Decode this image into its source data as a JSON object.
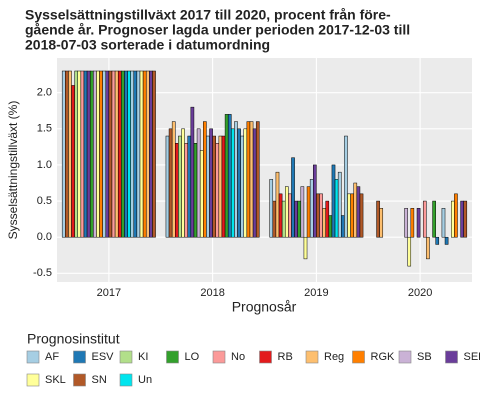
{
  "chart_data": {
    "type": "bar",
    "title": [
      "Sysselsättningstillväxt 2017 till 2020, procent från före-",
      "gående år. Prognoser lagda under perioden 2017-12-03 till",
      " 2018-07-03 sorterade i datumordning"
    ],
    "x_label": "Prognosår",
    "y_label": "Sysselsättningstillväxt (%)",
    "categories": [
      "2017",
      "2018",
      "2019",
      "2020"
    ],
    "ylim": [
      -0.62,
      2.48
    ],
    "yticks": [
      {
        "value": 2,
        "label": "2.0"
      },
      1.5,
      {
        "value": 1,
        "label": "1.0"
      },
      0.5,
      {
        "value": 0,
        "label": "0.0"
      },
      -0.5
    ],
    "grid": true,
    "legend_title": "Prognosinstitut",
    "institutes": [
      {
        "name": "AF",
        "color": "#a6cee3"
      },
      {
        "name": "ESV",
        "color": "#1f78b4"
      },
      {
        "name": "KI",
        "color": "#b2df8a"
      },
      {
        "name": "LO",
        "color": "#33a02c"
      },
      {
        "name": "No",
        "color": "#fb9a99"
      },
      {
        "name": "RB",
        "color": "#e31a1c"
      },
      {
        "name": "Reg",
        "color": "#fdbf6f"
      },
      {
        "name": "RGK",
        "color": "#ff7f00"
      },
      {
        "name": "SB",
        "color": "#cab2d6"
      },
      {
        "name": "SEB",
        "color": "#6a3d9a"
      },
      {
        "name": "SKL",
        "color": "#ffff99"
      },
      {
        "name": "SN",
        "color": "#b15928"
      },
      {
        "name": "Un",
        "color": "#00e5ee"
      }
    ],
    "forecasts": [
      {
        "institute": 0,
        "values": [
          2.3,
          1.4,
          0.8,
          null
        ]
      },
      {
        "institute": 11,
        "values": [
          2.3,
          1.5,
          0.5,
          0.5
        ]
      },
      {
        "institute": 6,
        "values": [
          2.3,
          1.6,
          0.9,
          0.4
        ]
      },
      {
        "institute": 5,
        "values": [
          2.1,
          1.3,
          0.6,
          0.0
        ]
      },
      {
        "institute": 2,
        "values": [
          2.3,
          1.4,
          0.5,
          null
        ]
      },
      {
        "institute": 10,
        "values": [
          2.3,
          1.5,
          0.7,
          null
        ]
      },
      {
        "institute": 4,
        "values": [
          2.3,
          1.3,
          0.6,
          null
        ]
      },
      {
        "institute": 1,
        "values": [
          2.3,
          1.4,
          1.1,
          null
        ]
      },
      {
        "institute": 9,
        "values": [
          2.3,
          1.8,
          0.5,
          null
        ]
      },
      {
        "institute": 3,
        "values": [
          2.3,
          1.3,
          0.5,
          null
        ]
      },
      {
        "institute": 8,
        "values": [
          2.3,
          1.5,
          0.7,
          0.4
        ]
      },
      {
        "institute": 10,
        "values": [
          2.3,
          1.2,
          -0.3,
          -0.4
        ]
      },
      {
        "institute": 7,
        "values": [
          2.3,
          1.6,
          0.7,
          0.4
        ]
      },
      {
        "institute": 0,
        "values": [
          2.3,
          1.4,
          0.8,
          null
        ]
      },
      {
        "institute": 9,
        "values": [
          2.3,
          1.5,
          1.0,
          0.4
        ]
      },
      {
        "institute": 11,
        "values": [
          2.3,
          1.4,
          0.6,
          null
        ]
      },
      {
        "institute": 4,
        "values": [
          2.3,
          1.3,
          0.6,
          0.5
        ]
      },
      {
        "institute": 6,
        "values": [
          2.3,
          1.4,
          0.4,
          -0.3
        ]
      },
      {
        "institute": 5,
        "values": [
          2.3,
          1.4,
          0.5,
          null
        ]
      },
      {
        "institute": 3,
        "values": [
          2.3,
          1.7,
          0.3,
          0.5
        ]
      },
      {
        "institute": 1,
        "values": [
          2.3,
          1.7,
          1.0,
          -0.1
        ]
      },
      {
        "institute": 12,
        "values": [
          2.3,
          1.5,
          0.8,
          null
        ]
      },
      {
        "institute": 0,
        "values": [
          2.3,
          1.6,
          0.9,
          0.4
        ]
      },
      {
        "institute": 1,
        "values": [
          2.3,
          1.5,
          0.3,
          -0.1
        ]
      },
      {
        "institute": 0,
        "values": [
          2.3,
          1.4,
          1.4,
          null
        ]
      },
      {
        "institute": 10,
        "values": [
          2.3,
          1.5,
          0.6,
          0.5
        ]
      },
      {
        "institute": 7,
        "values": [
          2.3,
          1.6,
          0.6,
          0.6
        ]
      },
      {
        "institute": 6,
        "values": [
          2.3,
          1.6,
          0.75,
          null
        ]
      },
      {
        "institute": 9,
        "values": [
          2.3,
          1.5,
          0.7,
          0.5
        ]
      },
      {
        "institute": 11,
        "values": [
          2.3,
          1.6,
          0.6,
          0.5
        ]
      }
    ]
  }
}
